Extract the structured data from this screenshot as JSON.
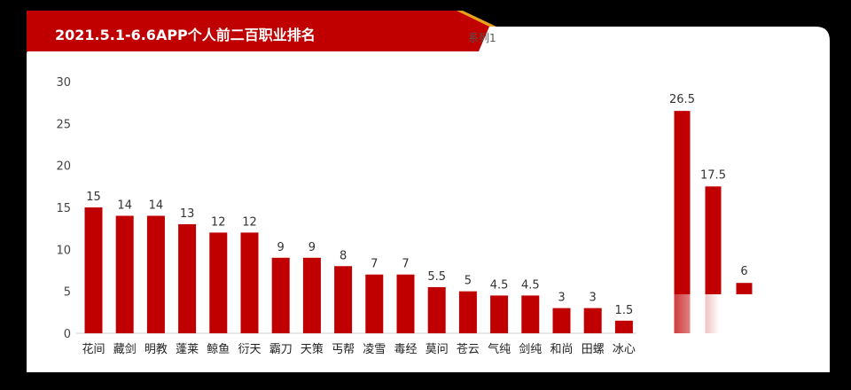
{
  "header": {
    "title": "2021.5.1-6.6APP个人前二百职业排名"
  },
  "chart_data": {
    "type": "bar",
    "title": "2021.5.1-6.6APP个人前二百职业排名",
    "xlabel": "",
    "ylabel": "",
    "ylim": [
      0,
      30
    ],
    "yticks": [
      0,
      5,
      10,
      15,
      20,
      25,
      30
    ],
    "grid": false,
    "legend_position": "top-right",
    "categories": [
      "花间",
      "藏剑",
      "明教",
      "蓬莱",
      "鲸鱼",
      "衍天",
      "霸刀",
      "天策",
      "丐帮",
      "凌雪",
      "毒经",
      "莫问",
      "苍云",
      "气纯",
      "剑纯",
      "和尚",
      "田螺",
      "冰心"
    ],
    "series": [
      {
        "name": "系列1",
        "color": "#c00000",
        "values": [
          15,
          14,
          14,
          13,
          12,
          12,
          9,
          9,
          8,
          7,
          7,
          5.5,
          5,
          4.5,
          4.5,
          3,
          3,
          1.5
        ]
      }
    ],
    "extra_bars": {
      "note_labels": [
        "26.5",
        "17.5",
        "6",
        ""
      ],
      "values": [
        26.5,
        17.5,
        6,
        0.5
      ]
    }
  }
}
